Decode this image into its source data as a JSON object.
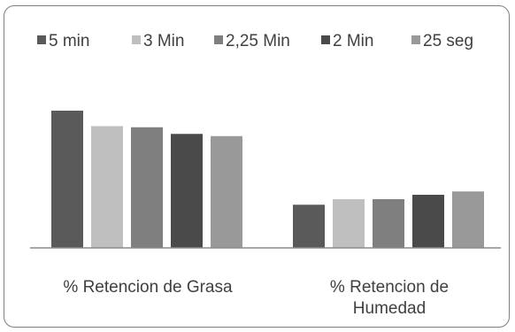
{
  "chart_data": {
    "type": "bar",
    "title": "",
    "xlabel": "",
    "ylabel": "",
    "ylim": [
      0,
      100
    ],
    "grid": false,
    "legend_position": "top",
    "categories": [
      [
        "% Retencion de Grasa"
      ],
      [
        "% Retencion de",
        "Humedad"
      ]
    ],
    "series": [
      {
        "name": "5 min",
        "color": "#5a5a5a",
        "values": [
          62,
          19.5
        ]
      },
      {
        "name": "3 Min",
        "color": "#bfbfbf",
        "values": [
          55,
          22.0
        ]
      },
      {
        "name": "2,25 Min",
        "color": "#7f7f7f",
        "values": [
          54.5,
          22.0
        ]
      },
      {
        "name": "2 Min",
        "color": "#4a4a4a",
        "values": [
          51.5,
          24.0
        ]
      },
      {
        "name": "25 seg",
        "color": "#999999",
        "values": [
          50.5,
          25.5
        ]
      }
    ]
  }
}
